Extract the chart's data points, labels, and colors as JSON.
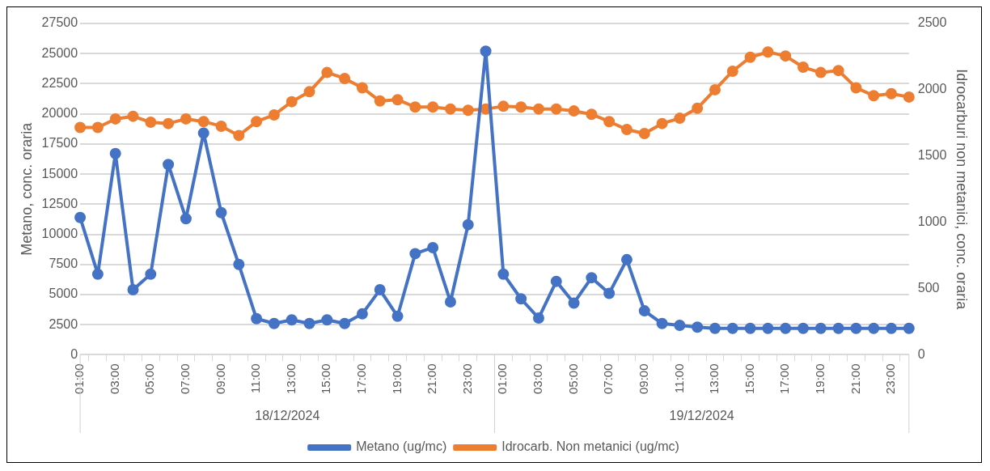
{
  "chart_data": {
    "type": "line",
    "ylabel": "Metano, conc. oraria",
    "y2label": "Idrocarburi non metanici, conc. oraria",
    "categories": [
      "01:00",
      null,
      "03:00",
      null,
      "05:00",
      null,
      "07:00",
      null,
      "09:00",
      null,
      "11:00",
      null,
      "13:00",
      null,
      "15:00",
      null,
      "17:00",
      null,
      "19:00",
      null,
      "21:00",
      null,
      "23:00",
      null,
      "01:00",
      null,
      "03:00",
      null,
      "05:00",
      null,
      "07:00",
      null,
      "09:00",
      null,
      "11:00",
      null,
      "13:00",
      null,
      "15:00",
      null,
      "17:00",
      null,
      "19:00",
      null,
      "21:00",
      null,
      "23:00",
      null
    ],
    "annotations": [
      "18/12/2024",
      "19/12/2024"
    ],
    "series": [
      {
        "name": "Metano (ug/mc)",
        "color": "#4472c4",
        "values": [
          11400,
          6700,
          16700,
          5400,
          6700,
          15800,
          11300,
          18400,
          11800,
          7500,
          3000,
          2600,
          2900,
          2600,
          2900,
          2600,
          3400,
          5400,
          3200,
          8400,
          8900,
          4400,
          10800,
          25200,
          6700,
          4650,
          3050,
          6100,
          4300,
          6400,
          5100,
          7900,
          3650,
          2600,
          2450,
          2300,
          2200,
          2200,
          2200,
          2200,
          2200,
          2200,
          2200,
          2200,
          2200,
          2200,
          2200,
          2200
        ]
      },
      {
        "name": "Idrocarb. Non metanici (ug/mc)",
        "color": "#ed7d31",
        "axis": "y2",
        "values": [
          1715,
          1715,
          1780,
          1800,
          1755,
          1745,
          1780,
          1760,
          1725,
          1655,
          1760,
          1810,
          1910,
          1985,
          2130,
          2085,
          2015,
          1915,
          1925,
          1870,
          1870,
          1855,
          1845,
          1855,
          1875,
          1870,
          1855,
          1855,
          1840,
          1815,
          1760,
          1700,
          1670,
          1745,
          1785,
          1860,
          2000,
          2140,
          2245,
          2285,
          2255,
          2170,
          2130,
          2145,
          2015,
          1955,
          1970,
          1945
        ]
      }
    ],
    "ylim": [
      0,
      27500
    ],
    "yticks": [
      0,
      2500,
      5000,
      7500,
      10000,
      12500,
      15000,
      17500,
      20000,
      22500,
      25000,
      27500
    ],
    "y2lim": [
      0,
      2500
    ],
    "y2ticks": [
      0,
      500,
      1000,
      1500,
      2000,
      2500
    ],
    "grid": "y",
    "legend": "bottom",
    "marker": "circle",
    "line_style": "solid"
  }
}
